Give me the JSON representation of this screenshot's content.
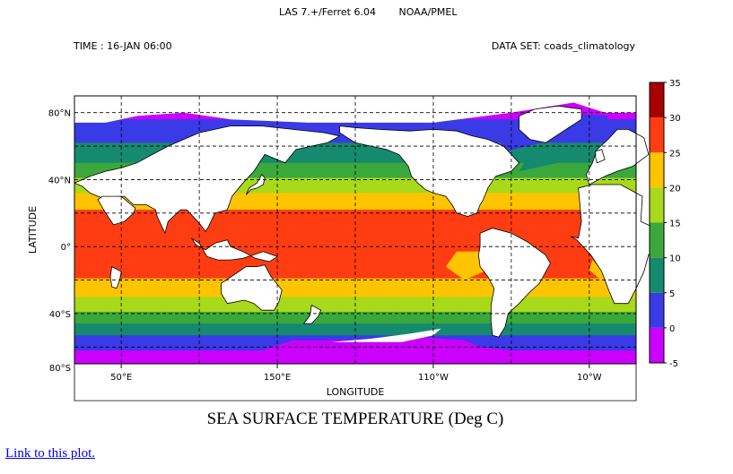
{
  "header": {
    "software": "LAS 7.+/Ferret 6.04",
    "org": "NOAA/PMEL",
    "time_label": "TIME : 16-JAN 06:00",
    "dataset_label": "DATA SET: coads_climatology"
  },
  "link_text": "Link to this plot.",
  "chart_data": {
    "type": "heatmap",
    "title": "SEA SURFACE TEMPERATURE (Deg C)",
    "xlabel": "LONGITUDE",
    "ylabel": "LATITUDE",
    "xlim_lon_east": [
      20,
      380
    ],
    "ylim_lat": [
      -70,
      90
    ],
    "x_ticks": [
      {
        "lon": 50,
        "label": "50°E"
      },
      {
        "lon": 150,
        "label": "150°E"
      },
      {
        "lon": 250,
        "label": "110°W"
      },
      {
        "lon": 350,
        "label": "10°W"
      }
    ],
    "y_ticks": [
      {
        "lat": 80,
        "label": "80°N"
      },
      {
        "lat": 40,
        "label": "40°N"
      },
      {
        "lat": 0,
        "label": "0°"
      },
      {
        "lat": -40,
        "label": "40°S"
      },
      {
        "lat": -80,
        "label": "80°S"
      }
    ],
    "grid": true,
    "colorbar": {
      "levels": [
        -5,
        0,
        5,
        10,
        15,
        20,
        25,
        30,
        35
      ],
      "colors": [
        "#cc00ff",
        "#3a3ae6",
        "#168a6e",
        "#3ba83b",
        "#a8d91a",
        "#ffc400",
        "#ff3d12",
        "#a80000"
      ]
    },
    "zonal_sst_profile": {
      "lat": [
        88,
        80,
        72,
        66,
        60,
        56,
        50,
        44,
        40,
        34,
        28,
        22,
        15,
        8,
        0,
        -8,
        -15,
        -22,
        -28,
        -34,
        -40,
        -46,
        -52,
        -56,
        -60,
        -64,
        -70
      ],
      "sst": [
        -2,
        -1,
        1,
        3,
        6,
        8,
        10,
        13,
        16,
        19,
        22,
        25,
        27,
        28,
        28,
        27,
        26,
        24,
        21,
        18,
        14,
        10,
        6,
        3,
        1,
        -1,
        -2
      ]
    },
    "land_masses": [
      "north-america",
      "greenland",
      "south-america",
      "africa",
      "europe",
      "asia",
      "india",
      "arabia",
      "indochina",
      "japan",
      "indonesia",
      "australia",
      "new-zealand",
      "antarctica",
      "madagascar",
      "uk"
    ]
  }
}
